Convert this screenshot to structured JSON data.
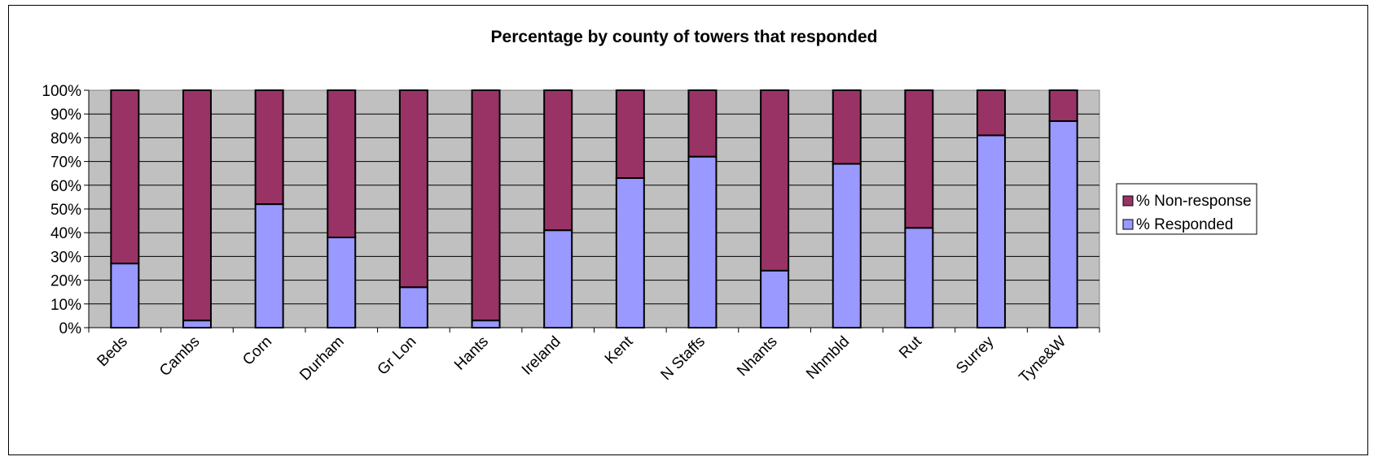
{
  "chart_data": {
    "type": "bar",
    "stacked": true,
    "percent_stacked": true,
    "title": "Percentage by county of towers that responded",
    "categories": [
      "Beds",
      "Cambs",
      "Corn",
      "Durham",
      "Gr Lon",
      "Hants",
      "Ireland",
      "Kent",
      "N Staffs",
      "Nhants",
      "Nhmbld",
      "Rut",
      "Surrey",
      "Tyne&W"
    ],
    "series": [
      {
        "name": "% Responded",
        "values": [
          27,
          3,
          52,
          38,
          17,
          3,
          41,
          63,
          72,
          24,
          69,
          42,
          81,
          87
        ]
      },
      {
        "name": "% Non-response",
        "values": [
          73,
          97,
          48,
          62,
          83,
          97,
          59,
          37,
          28,
          76,
          31,
          58,
          19,
          13
        ]
      }
    ],
    "ylim": [
      0,
      100
    ],
    "yticks": [
      "0%",
      "10%",
      "20%",
      "30%",
      "40%",
      "50%",
      "60%",
      "70%",
      "80%",
      "90%",
      "100%"
    ],
    "xlabel": "",
    "ylabel": "",
    "grid": true,
    "legend_position": "right",
    "legend": [
      "% Non-response",
      "% Responded"
    ],
    "colors": {
      "responded": "#9999ff",
      "non_response": "#993366",
      "plot_background": "#c0c0c0"
    }
  }
}
